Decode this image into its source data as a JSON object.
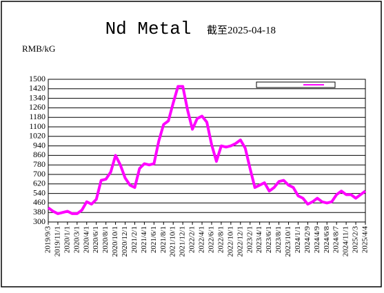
{
  "chart_data": {
    "type": "line",
    "title": "Nd Metal",
    "subtitle": "截至2025-04-18",
    "y_label": "RMB/kG",
    "categories": [
      "2019/9/3",
      null,
      "2019/11/1",
      null,
      "2020/1/1",
      null,
      "2020/3/1",
      null,
      "2020/4/1",
      null,
      "2020/6/1",
      null,
      "2020/8/1",
      null,
      "2020/10/1",
      null,
      "2020/12/1",
      null,
      "2021/2/1",
      null,
      "2021/4/1",
      null,
      "2021/6/1",
      null,
      "2021/8/1",
      null,
      "2021/10/1",
      null,
      "2021/12/1",
      null,
      "2022/2/1",
      null,
      "2022/4/1",
      null,
      "2022/6/1",
      null,
      "2022/8/1",
      null,
      "2022/10/1",
      null,
      "2022/12/1",
      null,
      "2023/2/1",
      null,
      "2023/4/1",
      null,
      "2023/6/1",
      null,
      "2023/8/1",
      null,
      "2023/10/1",
      null,
      "2024/1/1",
      null,
      "2024/2/9",
      null,
      "2024/4/9",
      null,
      "2024/6/8",
      null,
      "2024/8/7",
      null,
      "2024/11/1",
      null,
      "2025/2/3",
      null,
      "2025/4/4"
    ],
    "series": [
      {
        "color": "#ff00ff",
        "values": [
          420,
          390,
          370,
          380,
          390,
          370,
          370,
          400,
          470,
          450,
          490,
          650,
          660,
          720,
          860,
          780,
          670,
          610,
          590,
          750,
          790,
          780,
          790,
          980,
          1120,
          1150,
          1300,
          1440,
          1440,
          1240,
          1080,
          1170,
          1190,
          1140,
          950,
          810,
          940,
          930,
          940,
          960,
          990,
          920,
          750,
          590,
          610,
          630,
          560,
          590,
          640,
          650,
          610,
          590,
          520,
          500,
          450,
          470,
          500,
          470,
          460,
          470,
          530,
          560,
          530,
          530,
          500,
          530,
          560
        ]
      }
    ],
    "ylim": [
      300,
      1500
    ],
    "yticks": [
      300,
      380,
      460,
      540,
      620,
      700,
      780,
      860,
      940,
      1020,
      1100,
      1180,
      1260,
      1340,
      1420,
      1500
    ],
    "grid": true
  }
}
